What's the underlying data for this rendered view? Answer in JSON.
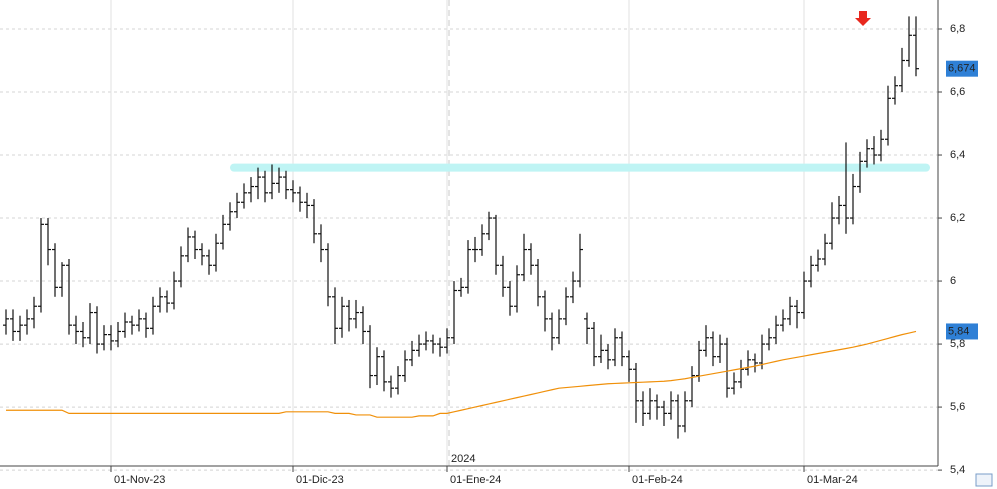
{
  "chart_data": {
    "type": "ohlc",
    "categories": [
      null,
      null,
      null,
      null,
      null,
      null,
      null,
      null,
      null,
      null,
      null,
      null,
      null,
      null,
      null,
      "01-Nov-23",
      null,
      null,
      null,
      null,
      null,
      null,
      null,
      null,
      null,
      null,
      null,
      null,
      null,
      null,
      null,
      null,
      null,
      null,
      null,
      null,
      null,
      null,
      null,
      null,
      null,
      "01-Dic-23",
      null,
      null,
      null,
      null,
      null,
      null,
      null,
      null,
      null,
      null,
      null,
      null,
      null,
      null,
      null,
      null,
      null,
      null,
      null,
      null,
      null,
      "01-Ene-24",
      null,
      null,
      null,
      null,
      null,
      null,
      null,
      null,
      null,
      null,
      null,
      null,
      null,
      null,
      null,
      null,
      null,
      null,
      null,
      null,
      null,
      null,
      null,
      null,
      null,
      "01-Feb-24",
      null,
      null,
      null,
      null,
      null,
      null,
      null,
      null,
      null,
      null,
      null,
      null,
      null,
      null,
      null,
      null,
      null,
      null,
      null,
      null,
      null,
      null,
      null,
      null,
      "01-Mar-24",
      null,
      null,
      null,
      null,
      null,
      null,
      null,
      null,
      null,
      null,
      null,
      null,
      null,
      null,
      null,
      null
    ],
    "year_label": "2024",
    "series": [
      {
        "type": "ohlc",
        "color": "#111111",
        "last_label": "6,674",
        "open": [
          5.86,
          5.88,
          5.84,
          5.86,
          5.88,
          5.92,
          6.18,
          6.1,
          5.98,
          6.05,
          5.86,
          5.84,
          5.82,
          5.9,
          5.8,
          5.83,
          5.81,
          5.84,
          5.87,
          5.86,
          5.88,
          5.85,
          5.92,
          5.95,
          5.93,
          6.0,
          6.08,
          6.14,
          6.1,
          6.08,
          6.05,
          6.12,
          6.18,
          6.22,
          6.25,
          6.28,
          6.3,
          6.33,
          6.28,
          6.31,
          6.33,
          6.29,
          6.28,
          6.25,
          6.24,
          6.15,
          6.1,
          5.95,
          5.85,
          5.92,
          5.88,
          5.9,
          5.84,
          5.7,
          5.76,
          5.68,
          5.66,
          5.7,
          5.75,
          5.78,
          5.8,
          5.81,
          5.8,
          5.79,
          5.82,
          5.97,
          5.98,
          6.1,
          6.1,
          6.15,
          6.2,
          6.05,
          5.98,
          5.92,
          6.02,
          6.1,
          6.05,
          5.95,
          5.88,
          5.82,
          5.88,
          5.95,
          6.0,
          5.88,
          5.85,
          5.76,
          5.78,
          5.75,
          5.82,
          5.76,
          5.72,
          5.62,
          5.58,
          5.62,
          5.6,
          5.58,
          5.62,
          5.54,
          5.62,
          5.7,
          5.78,
          5.82,
          5.76,
          5.8,
          5.66,
          5.68,
          5.72,
          5.75,
          5.74,
          5.8,
          5.82,
          5.86,
          5.88,
          5.92,
          5.9,
          6.0,
          6.05,
          6.07,
          6.12,
          6.2,
          6.24,
          6.2,
          6.3,
          6.38,
          6.42,
          6.4,
          6.45,
          6.58,
          6.62,
          6.7,
          6.78
        ],
        "high": [
          5.91,
          5.91,
          5.89,
          5.91,
          5.95,
          6.2,
          6.2,
          6.12,
          6.06,
          6.07,
          5.89,
          5.87,
          5.93,
          5.92,
          5.86,
          5.86,
          5.87,
          5.9,
          5.89,
          5.91,
          5.9,
          5.95,
          5.98,
          5.97,
          6.03,
          6.11,
          6.17,
          6.16,
          6.12,
          6.1,
          6.15,
          6.21,
          6.25,
          6.28,
          6.31,
          6.33,
          6.36,
          6.35,
          6.37,
          6.36,
          6.35,
          6.32,
          6.3,
          6.28,
          6.26,
          6.18,
          6.12,
          5.98,
          5.95,
          5.94,
          5.94,
          5.92,
          5.86,
          5.79,
          5.78,
          5.7,
          5.73,
          5.78,
          5.81,
          5.83,
          5.84,
          5.83,
          5.82,
          5.85,
          6.0,
          6.01,
          6.13,
          6.14,
          6.18,
          6.22,
          6.21,
          6.08,
          6.0,
          6.05,
          6.15,
          6.12,
          6.07,
          5.97,
          5.9,
          5.91,
          5.98,
          6.03,
          6.15,
          5.9,
          5.87,
          5.83,
          5.8,
          5.85,
          5.84,
          5.78,
          5.74,
          5.65,
          5.66,
          5.64,
          5.62,
          5.65,
          5.64,
          5.65,
          5.73,
          5.81,
          5.86,
          5.84,
          5.83,
          5.82,
          5.71,
          5.75,
          5.78,
          5.77,
          5.83,
          5.85,
          5.89,
          5.91,
          5.95,
          5.94,
          6.03,
          6.08,
          6.1,
          6.15,
          6.25,
          6.27,
          6.44,
          6.34,
          6.41,
          6.45,
          6.46,
          6.48,
          6.62,
          6.65,
          6.74,
          6.84,
          6.84
        ],
        "low": [
          5.83,
          5.81,
          5.81,
          5.83,
          5.85,
          5.9,
          6.05,
          5.95,
          5.95,
          5.83,
          5.8,
          5.79,
          5.8,
          5.77,
          5.78,
          5.78,
          5.79,
          5.82,
          5.83,
          5.84,
          5.82,
          5.83,
          5.9,
          5.9,
          5.91,
          5.98,
          6.06,
          6.07,
          6.05,
          6.02,
          6.03,
          6.1,
          6.16,
          6.2,
          6.23,
          6.25,
          6.26,
          6.25,
          6.26,
          6.28,
          6.26,
          6.25,
          6.22,
          6.2,
          6.12,
          6.06,
          5.92,
          5.8,
          5.82,
          5.84,
          5.85,
          5.8,
          5.66,
          5.67,
          5.65,
          5.63,
          5.64,
          5.68,
          5.73,
          5.76,
          5.78,
          5.77,
          5.76,
          5.77,
          5.8,
          5.95,
          5.96,
          6.06,
          6.08,
          6.13,
          6.02,
          5.95,
          5.89,
          5.9,
          6.0,
          6.02,
          5.92,
          5.84,
          5.78,
          5.8,
          5.86,
          5.93,
          5.98,
          5.8,
          5.73,
          5.74,
          5.72,
          5.73,
          5.73,
          5.68,
          5.55,
          5.54,
          5.56,
          5.56,
          5.54,
          5.56,
          5.5,
          5.52,
          5.6,
          5.68,
          5.76,
          5.73,
          5.74,
          5.63,
          5.64,
          5.66,
          5.7,
          5.71,
          5.72,
          5.78,
          5.8,
          5.84,
          5.86,
          5.85,
          5.88,
          5.98,
          6.03,
          6.05,
          6.1,
          6.18,
          6.15,
          6.18,
          6.28,
          6.36,
          6.37,
          6.38,
          6.43,
          6.56,
          6.6,
          6.68,
          6.65
        ],
        "close": [
          5.88,
          5.84,
          5.86,
          5.88,
          5.92,
          6.18,
          6.1,
          5.98,
          6.05,
          5.86,
          5.84,
          5.82,
          5.9,
          5.8,
          5.83,
          5.81,
          5.84,
          5.87,
          5.86,
          5.88,
          5.85,
          5.92,
          5.95,
          5.93,
          6.0,
          6.08,
          6.14,
          6.1,
          6.08,
          6.05,
          6.12,
          6.18,
          6.22,
          6.25,
          6.28,
          6.3,
          6.33,
          6.28,
          6.31,
          6.33,
          6.29,
          6.28,
          6.25,
          6.24,
          6.15,
          6.1,
          5.95,
          5.85,
          5.92,
          5.88,
          5.9,
          5.84,
          5.7,
          5.76,
          5.68,
          5.66,
          5.7,
          5.75,
          5.78,
          5.8,
          5.81,
          5.8,
          5.79,
          5.82,
          5.97,
          5.98,
          6.1,
          6.1,
          6.15,
          6.2,
          6.05,
          5.98,
          5.92,
          6.02,
          6.1,
          6.05,
          5.95,
          5.88,
          5.82,
          5.88,
          5.95,
          6.0,
          6.1,
          5.85,
          5.76,
          5.78,
          5.75,
          5.82,
          5.76,
          5.72,
          5.62,
          5.58,
          5.62,
          5.6,
          5.58,
          5.62,
          5.54,
          5.62,
          5.7,
          5.78,
          5.82,
          5.76,
          5.8,
          5.66,
          5.68,
          5.72,
          5.75,
          5.74,
          5.8,
          5.82,
          5.86,
          5.88,
          5.92,
          5.9,
          6.0,
          6.05,
          6.07,
          6.12,
          6.2,
          6.24,
          6.2,
          6.3,
          6.38,
          6.42,
          6.4,
          6.45,
          6.58,
          6.62,
          6.7,
          6.78,
          6.674
        ]
      },
      {
        "type": "line",
        "color": "#f0900a",
        "last_label": "5,84",
        "values": [
          5.59,
          5.59,
          5.59,
          5.59,
          5.59,
          5.59,
          5.59,
          5.59,
          5.59,
          5.58,
          5.58,
          5.58,
          5.58,
          5.58,
          5.58,
          5.58,
          5.58,
          5.58,
          5.58,
          5.58,
          5.58,
          5.58,
          5.58,
          5.58,
          5.58,
          5.58,
          5.58,
          5.58,
          5.58,
          5.58,
          5.58,
          5.58,
          5.58,
          5.58,
          5.58,
          5.58,
          5.58,
          5.58,
          5.58,
          5.58,
          5.585,
          5.585,
          5.585,
          5.585,
          5.585,
          5.585,
          5.585,
          5.58,
          5.58,
          5.58,
          5.575,
          5.575,
          5.575,
          5.568,
          5.568,
          5.568,
          5.568,
          5.568,
          5.568,
          5.572,
          5.572,
          5.572,
          5.58,
          5.58,
          5.585,
          5.59,
          5.595,
          5.6,
          5.605,
          5.61,
          5.615,
          5.62,
          5.625,
          5.63,
          5.635,
          5.64,
          5.645,
          5.65,
          5.655,
          5.66,
          5.662,
          5.664,
          5.666,
          5.668,
          5.67,
          5.672,
          5.674,
          5.675,
          5.676,
          5.677,
          5.678,
          5.679,
          5.68,
          5.681,
          5.682,
          5.684,
          5.687,
          5.69,
          5.694,
          5.698,
          5.702,
          5.706,
          5.71,
          5.714,
          5.718,
          5.722,
          5.726,
          5.73,
          5.735,
          5.74,
          5.745,
          5.75,
          5.754,
          5.758,
          5.762,
          5.766,
          5.77,
          5.774,
          5.778,
          5.782,
          5.786,
          5.79,
          5.795,
          5.8,
          5.806,
          5.812,
          5.818,
          5.824,
          5.83,
          5.835,
          5.84
        ]
      }
    ],
    "resistance": {
      "value": 6.36,
      "color": "#bff4f4"
    },
    "ylim": [
      5.413,
      6.892
    ],
    "yticks": [
      {
        "value": 5.4,
        "label": "5,4"
      },
      {
        "value": 5.6,
        "label": "5,6"
      },
      {
        "value": 5.8,
        "label": "5,8"
      },
      6,
      {
        "value": 6.2,
        "label": "6,2"
      },
      {
        "value": 6.4,
        "label": "6,4"
      },
      {
        "value": 6.6,
        "label": "6,6"
      },
      {
        "value": 6.8,
        "label": "6,8"
      }
    ],
    "grid": true,
    "label_box_color": "#2f80d6"
  }
}
